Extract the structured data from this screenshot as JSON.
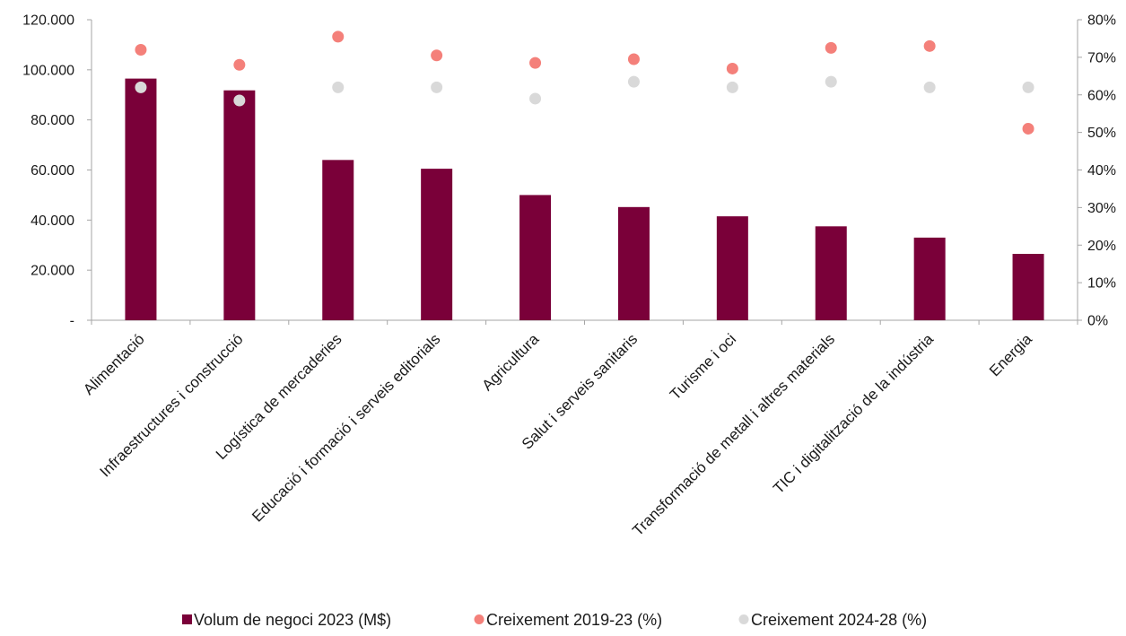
{
  "chart_data": {
    "type": "bar",
    "categories": [
      "Alimentació",
      "Infraestructures i construcció",
      "Logística de mercaderies",
      "Educació i formació i serveis editorials",
      "Agricultura",
      "Salut i serveis sanitaris",
      "Turisme i oci",
      "Transformació de metall i altres materials",
      "TIC i digitalització de la indústria",
      "Energia"
    ],
    "series": [
      {
        "name": "Volum de negoci 2023 (M$)",
        "type": "bar",
        "axis": "left",
        "color": "#7a0039",
        "values": [
          96500,
          91800,
          64000,
          60500,
          50000,
          45200,
          41500,
          37500,
          33000,
          26500
        ]
      },
      {
        "name": "Creixement 2019-23 (%)",
        "type": "scatter",
        "axis": "right",
        "color": "#f4807a",
        "values": [
          72,
          68,
          75.5,
          70.5,
          68.5,
          69.5,
          67,
          72.5,
          73,
          51
        ]
      },
      {
        "name": "Creixement 2024-28 (%)",
        "type": "scatter",
        "axis": "right",
        "color": "#d9d9d9",
        "values": [
          62,
          58.5,
          62,
          62,
          59,
          63.5,
          62,
          63.5,
          62,
          62
        ]
      }
    ],
    "y_left": {
      "ylim": [
        0,
        120000
      ],
      "ticks": [
        0,
        20000,
        40000,
        60000,
        80000,
        100000,
        120000
      ],
      "tick_labels": [
        "-",
        "20.000",
        "40.000",
        "60.000",
        "80.000",
        "100.000",
        "120.000"
      ]
    },
    "y_right": {
      "ylim": [
        0,
        80
      ],
      "ticks": [
        0,
        10,
        20,
        30,
        40,
        50,
        60,
        70,
        80
      ],
      "tick_labels": [
        "0%",
        "10%",
        "20%",
        "30%",
        "40%",
        "50%",
        "60%",
        "70%",
        "80%"
      ]
    },
    "grid": false,
    "legend_position": "bottom"
  }
}
